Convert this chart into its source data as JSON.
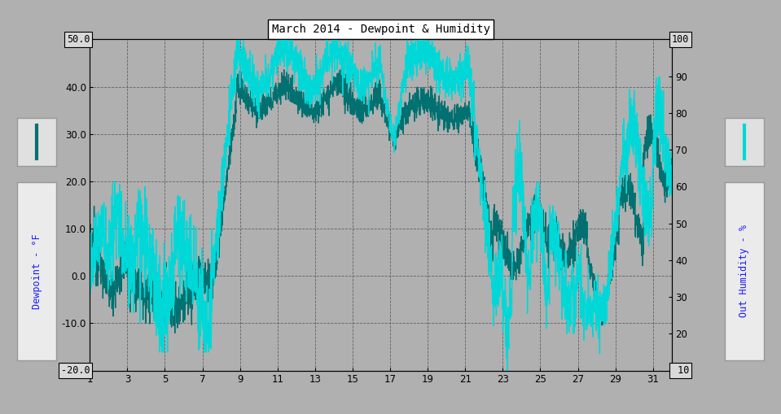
{
  "title": "March 2014 - Dewpoint & Humidity",
  "ylabel_left": "Dewpoint - °F",
  "ylabel_right": "Out Humidity - %",
  "xlim": [
    1,
    32
  ],
  "ylim_left": [
    -20.0,
    50.0
  ],
  "ylim_right": [
    10,
    100
  ],
  "yticks_left": [
    -20.0,
    -10.0,
    0.0,
    10.0,
    20.0,
    30.0,
    40.0,
    50.0
  ],
  "yticks_right": [
    10,
    20,
    30,
    40,
    50,
    60,
    70,
    80,
    90,
    100
  ],
  "xticks": [
    1,
    3,
    5,
    7,
    9,
    11,
    13,
    15,
    17,
    19,
    21,
    23,
    25,
    27,
    29,
    31
  ],
  "bg_color": "#b0b0b0",
  "plot_bg_color": "#b0b0b0",
  "grid_color": "#606060",
  "color_dewpoint": "#007070",
  "color_humidity": "#00d8d8",
  "linewidth_dewpoint": 1.0,
  "linewidth_humidity": 1.0
}
